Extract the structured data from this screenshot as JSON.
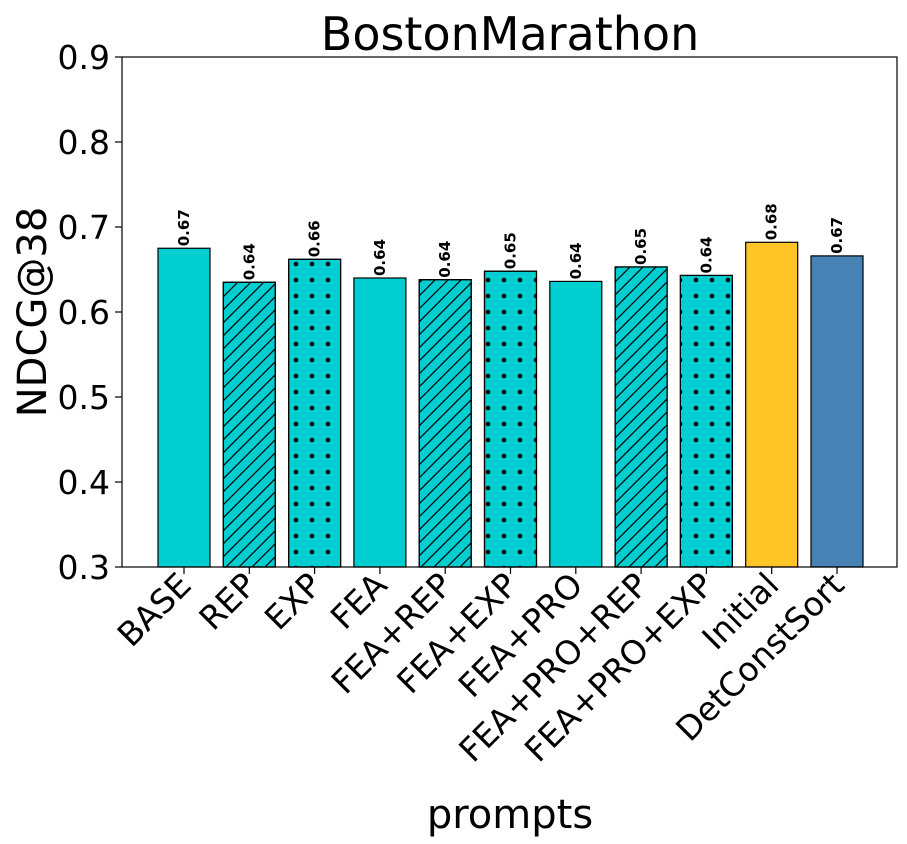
{
  "chart_data": {
    "type": "bar",
    "title": "BostonMarathon",
    "xlabel": "prompts",
    "ylabel": "NDCG@38",
    "ylim": [
      0.3,
      0.9
    ],
    "yticks": [
      "0.3",
      "0.4",
      "0.5",
      "0.6",
      "0.7",
      "0.8",
      "0.9"
    ],
    "categories": [
      "BASE",
      "REP",
      "EXP",
      "FEA",
      "FEA+REP",
      "FEA+EXP",
      "FEA+PRO",
      "FEA+PRO+REP",
      "FEA+PRO+EXP",
      "Initial",
      "DetConstSort"
    ],
    "values": [
      0.675,
      0.635,
      0.662,
      0.64,
      0.638,
      0.648,
      0.636,
      0.653,
      0.643,
      0.682,
      0.666
    ],
    "value_labels": [
      "0.67",
      "0.64",
      "0.66",
      "0.64",
      "0.64",
      "0.65",
      "0.64",
      "0.65",
      "0.64",
      "0.68",
      "0.67"
    ],
    "patterns": [
      "none",
      "hatch",
      "dots",
      "none",
      "hatch",
      "dots",
      "none",
      "hatch",
      "dots",
      "none",
      "none"
    ],
    "colors": [
      "#00CED1",
      "#00CED1",
      "#00CED1",
      "#00CED1",
      "#00CED1",
      "#00CED1",
      "#00CED1",
      "#00CED1",
      "#00CED1",
      "#FFC425",
      "#4682B4"
    ],
    "grid": false,
    "legend": "none"
  }
}
